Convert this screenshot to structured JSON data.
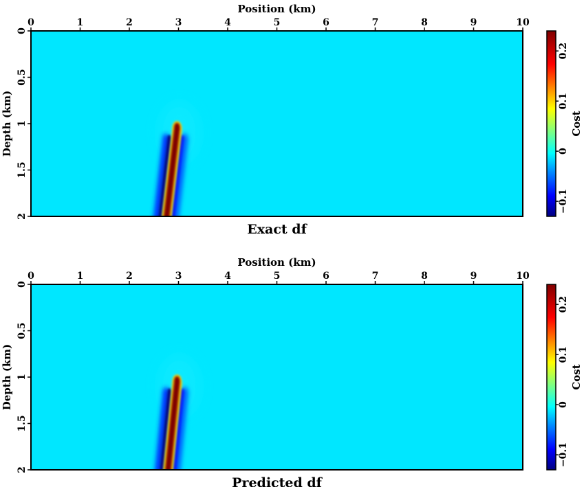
{
  "chart_data": [
    {
      "type": "heatmap",
      "title": "Exact df",
      "xlabel": "Position (km)",
      "ylabel": "Depth (km)",
      "xlim": [
        0,
        10
      ],
      "ylim": [
        0,
        2
      ],
      "y_inverted": true,
      "x_ticks": [
        "0",
        "1",
        "2",
        "3",
        "4",
        "5",
        "6",
        "7",
        "8",
        "9",
        "10"
      ],
      "y_ticks": [
        "0",
        "0.5",
        "1",
        "1.5",
        "2"
      ],
      "colorbar": {
        "label": "Cost",
        "ticks": [
          "−0.1",
          "0",
          "0.1",
          "0.2"
        ],
        "range": [
          -0.13,
          0.24
        ],
        "colormap": "jet"
      },
      "background_value": 0,
      "anomaly": {
        "positive_lobe": {
          "x_top": 2.97,
          "x_bottom": 2.75,
          "depth_start": 1.02,
          "depth_end": 2.0,
          "peak": 0.24
        },
        "negative_lobes": [
          {
            "side": "left",
            "x_bottom": 2.42,
            "peak": -0.13
          },
          {
            "side": "right",
            "x_bottom": 3.05,
            "peak": -0.08
          }
        ]
      }
    },
    {
      "type": "heatmap",
      "title": "Predicted df",
      "xlabel": "Position (km)",
      "ylabel": "Depth (km)",
      "xlim": [
        0,
        10
      ],
      "ylim": [
        0,
        2
      ],
      "y_inverted": true,
      "x_ticks": [
        "0",
        "1",
        "2",
        "3",
        "4",
        "5",
        "6",
        "7",
        "8",
        "9",
        "10"
      ],
      "y_ticks": [
        "0",
        "0.5",
        "1",
        "1.5",
        "2"
      ],
      "colorbar": {
        "label": "Cost",
        "ticks": [
          "−0.1",
          "0",
          "0.1",
          "0.2"
        ],
        "range": [
          -0.13,
          0.24
        ],
        "colormap": "jet"
      },
      "background_value": 0,
      "anomaly": {
        "positive_lobe": {
          "x_top": 2.97,
          "x_bottom": 2.78,
          "depth_start": 1.02,
          "depth_end": 2.0,
          "peak": 0.24
        },
        "negative_lobes": [
          {
            "side": "left",
            "x_bottom": 2.45,
            "peak": -0.13
          },
          {
            "side": "right",
            "x_bottom": 3.08,
            "peak": -0.08
          }
        ]
      }
    }
  ]
}
